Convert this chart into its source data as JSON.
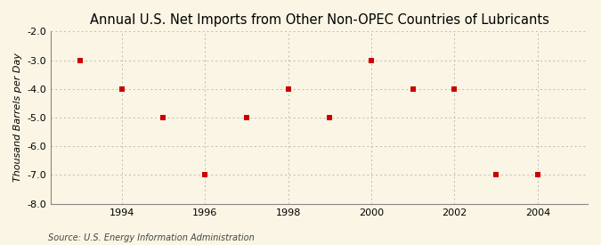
{
  "title": "Annual U.S. Net Imports from Other Non-OPEC Countries of Lubricants",
  "ylabel": "Thousand Barrels per Day",
  "source": "Source: U.S. Energy Information Administration",
  "years": [
    1993,
    1994,
    1995,
    1996,
    1997,
    1998,
    1999,
    2000,
    2001,
    2002,
    2003,
    2004
  ],
  "values": [
    -3.0,
    -4.0,
    -5.0,
    -7.0,
    -5.0,
    -4.0,
    -5.0,
    -3.0,
    -4.0,
    -4.0,
    -7.0,
    -7.0
  ],
  "ylim": [
    -8.0,
    -2.0
  ],
  "yticks": [
    -8.0,
    -7.0,
    -6.0,
    -5.0,
    -4.0,
    -3.0,
    -2.0
  ],
  "xlim": [
    1992.3,
    2005.2
  ],
  "xticks": [
    1994,
    1996,
    1998,
    2000,
    2002,
    2004
  ],
  "marker_color": "#cc0000",
  "marker": "s",
  "marker_size": 4,
  "bg_color": "#faf5e4",
  "grid_color": "#bbbbbb",
  "title_fontsize": 10.5,
  "label_fontsize": 8,
  "tick_fontsize": 8,
  "source_fontsize": 7
}
